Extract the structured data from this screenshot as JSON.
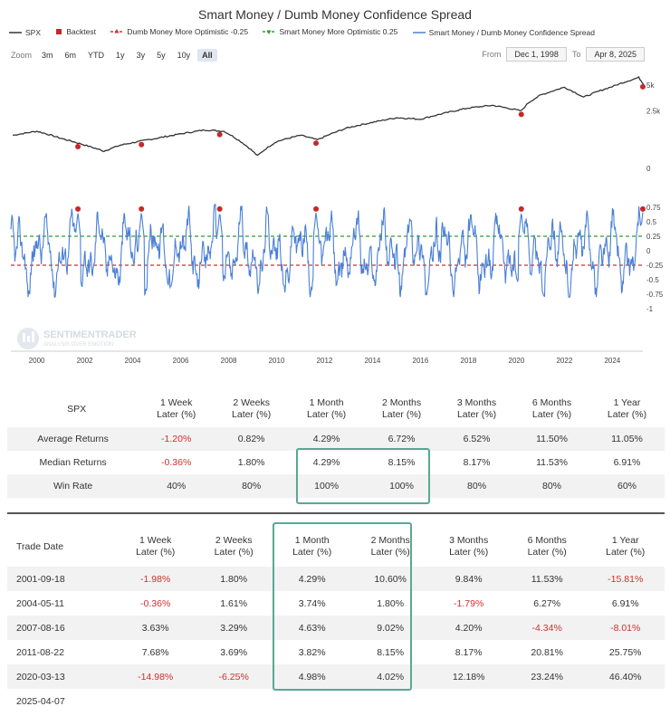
{
  "title": "Smart Money / Dumb Money Confidence Spread",
  "legend": [
    {
      "label": "SPX",
      "color": "#333333",
      "kind": "line"
    },
    {
      "label": "Backtest",
      "color": "#c62828",
      "kind": "square"
    },
    {
      "label": "Dumb Money More Optimistic -0.25",
      "color": "#d32f2f",
      "kind": "dash"
    },
    {
      "label": "Smart Money More Optimistic 0.25",
      "color": "#2e9e2e",
      "kind": "dash"
    },
    {
      "label": "Smart Money / Dumb Money Confidence Spread",
      "color": "#4a7fd6",
      "kind": "line"
    }
  ],
  "zoom": {
    "label": "Zoom",
    "buttons": [
      "3m",
      "6m",
      "YTD",
      "1y",
      "3y",
      "5y",
      "10y",
      "All"
    ],
    "active": "All"
  },
  "range": {
    "from_label": "From",
    "from_value": "Dec 1, 1998",
    "to_label": "To",
    "to_value": "Apr 8, 2025"
  },
  "watermark": {
    "name": "SENTIMENTRADER",
    "tagline": "ANALYSIS OVER EMOTION"
  },
  "colors": {
    "spx": "#333333",
    "spread": "#4a7fd6",
    "bear_line": "#d32f2f",
    "bull_line": "#2e9e2e",
    "backtest": "#c62828",
    "highlight": "#5aa892",
    "negative": "#d32f2f"
  },
  "chart_data": {
    "type": "line",
    "x_ticks": [
      "2000",
      "2002",
      "2004",
      "2006",
      "2008",
      "2010",
      "2012",
      "2014",
      "2016",
      "2018",
      "2020",
      "2022",
      "2024"
    ],
    "top_panel": {
      "series": "SPX",
      "y_ticks": [
        "5k",
        "2.5k",
        "0"
      ],
      "x": [
        1999,
        2000,
        2001,
        2002,
        2002.8,
        2003.5,
        2005,
        2007,
        2007.8,
        2009.2,
        2010,
        2011,
        2011.7,
        2013,
        2015,
        2016,
        2018,
        2019,
        2020.2,
        2020.5,
        2021,
        2022,
        2022.8,
        2024,
        2025.1,
        2025.3
      ],
      "values": [
        1300,
        1450,
        1200,
        1000,
        850,
        1000,
        1200,
        1500,
        1450,
        750,
        1100,
        1300,
        1150,
        1600,
        2080,
        2000,
        2700,
        2900,
        2500,
        3100,
        3800,
        4700,
        3600,
        4800,
        6100,
        5100
      ]
    },
    "bottom_panel": {
      "series": "Smart Money / Dumb Money Confidence Spread",
      "y_ticks": [
        "0.75",
        "0.5",
        "0.25",
        "0",
        "-0.25",
        "-0.5",
        "-0.75",
        "-1"
      ],
      "ylim": [
        -1,
        0.75
      ],
      "reference_lines": [
        {
          "name": "Smart Money More Optimistic 0.25",
          "value": 0.25
        },
        {
          "name": "Dumb Money More Optimistic -0.25",
          "value": -0.25
        }
      ]
    },
    "backtest_dates": [
      "2001-09-18",
      "2004-05-11",
      "2007-08-16",
      "2011-08-22",
      "2020-03-13",
      "2025-04-07"
    ]
  },
  "summary_table": {
    "corner": "SPX",
    "headers": [
      "1 Week\nLater (%)",
      "2 Weeks\nLater (%)",
      "1 Month\nLater (%)",
      "2 Months\nLater (%)",
      "3 Months\nLater (%)",
      "6 Months\nLater (%)",
      "1 Year\nLater (%)"
    ],
    "rows": [
      {
        "label": "Average Returns",
        "values": [
          "-1.20%",
          "0.82%",
          "4.29%",
          "6.72%",
          "6.52%",
          "11.50%",
          "11.05%"
        ]
      },
      {
        "label": "Median Returns",
        "values": [
          "-0.36%",
          "1.80%",
          "4.29%",
          "8.15%",
          "8.17%",
          "11.53%",
          "6.91%"
        ]
      },
      {
        "label": "Win Rate",
        "values": [
          "40%",
          "80%",
          "100%",
          "100%",
          "80%",
          "80%",
          "60%"
        ]
      }
    ]
  },
  "trades_table": {
    "corner": "Trade Date",
    "headers": [
      "1 Week\nLater (%)",
      "2 Weeks\nLater (%)",
      "1 Month\nLater (%)",
      "2 Months\nLater (%)",
      "3 Months\nLater (%)",
      "6 Months\nLater (%)",
      "1 Year\nLater (%)"
    ],
    "rows": [
      {
        "date": "2001-09-18",
        "values": [
          "-1.98%",
          "1.80%",
          "4.29%",
          "10.60%",
          "9.84%",
          "11.53%",
          "-15.81%"
        ]
      },
      {
        "date": "2004-05-11",
        "values": [
          "-0.36%",
          "1.61%",
          "3.74%",
          "1.80%",
          "-1.79%",
          "6.27%",
          "6.91%"
        ]
      },
      {
        "date": "2007-08-16",
        "values": [
          "3.63%",
          "3.29%",
          "4.63%",
          "9.02%",
          "4.20%",
          "-4.34%",
          "-8.01%"
        ]
      },
      {
        "date": "2011-08-22",
        "values": [
          "7.68%",
          "3.69%",
          "3.82%",
          "8.15%",
          "8.17%",
          "20.81%",
          "25.75%"
        ]
      },
      {
        "date": "2020-03-13",
        "values": [
          "-14.98%",
          "-6.25%",
          "4.98%",
          "4.02%",
          "12.18%",
          "23.24%",
          "46.40%"
        ]
      },
      {
        "date": "2025-04-07",
        "values": [
          "",
          "",
          "",
          "",
          "",
          "",
          ""
        ]
      }
    ]
  }
}
